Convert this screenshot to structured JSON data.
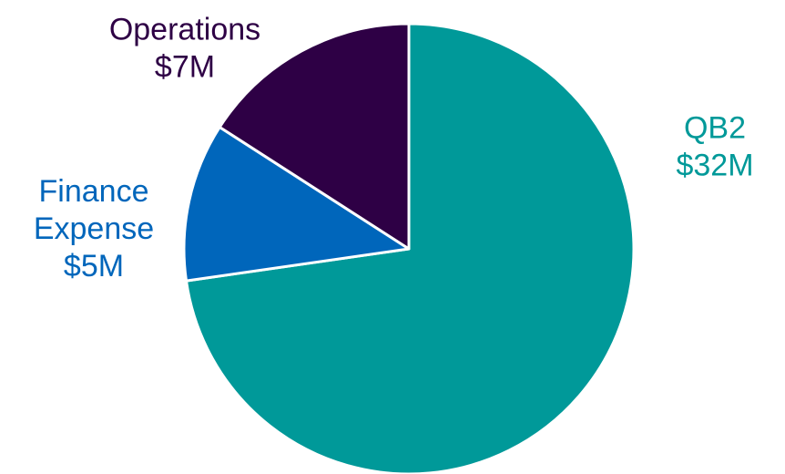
{
  "chart_data": {
    "type": "pie",
    "title": "",
    "unit_prefix": "$",
    "unit_suffix": "M",
    "slices": [
      {
        "name": "QB2",
        "value": 32,
        "value_label": "$32M",
        "label_lines": [
          "QB2",
          "$32M"
        ],
        "color": "#009999"
      },
      {
        "name": "Finance Expense",
        "value": 5,
        "value_label": "$5M",
        "label_lines": [
          "Finance",
          "Expense",
          "$5M"
        ],
        "color": "#0066BB"
      },
      {
        "name": "Operations",
        "value": 7,
        "value_label": "$7M",
        "label_lines": [
          "Operations",
          "$7M"
        ],
        "color": "#2E0045"
      }
    ],
    "start_angle": "12 o'clock",
    "direction": "clockwise",
    "slice_border_color": "#ffffff",
    "legend": "none",
    "label_colors_match_slices": true
  }
}
